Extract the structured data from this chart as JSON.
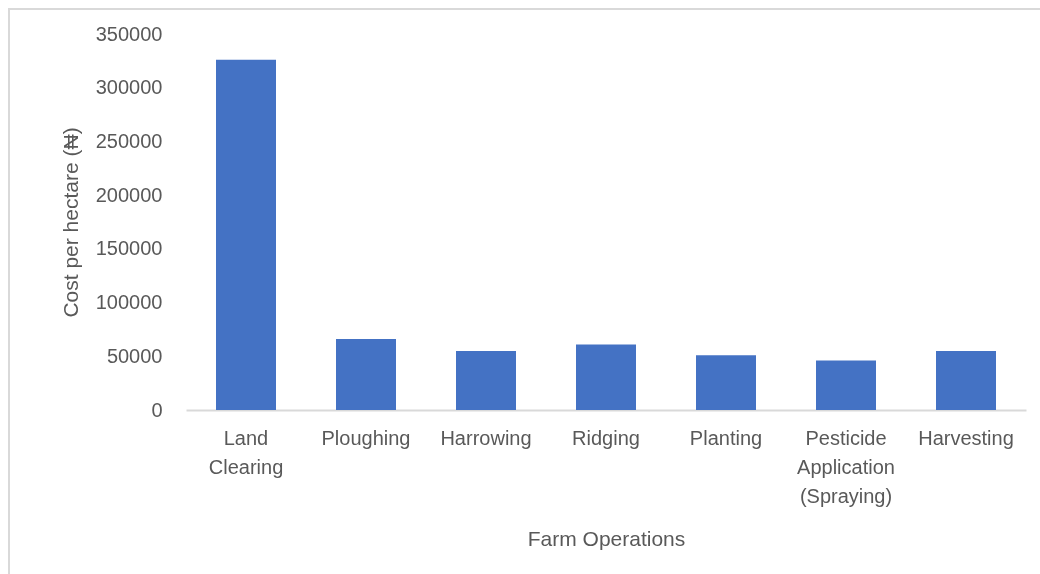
{
  "chart_data": {
    "type": "bar",
    "xlabel": "Farm Operations",
    "ylabel": "Cost per hectare (₦)",
    "categories": [
      "Land Clearing",
      "Ploughing",
      "Harrowing",
      "Ridging",
      "Planting",
      "Pesticide Application (Spraying)",
      "Harvesting"
    ],
    "values": [
      326000,
      66000,
      55000,
      61000,
      51000,
      46000,
      55000
    ],
    "color": "#4472c4",
    "ylim": [
      0,
      350000
    ],
    "yticks": [
      0,
      50000,
      100000,
      150000,
      200000,
      250000,
      300000,
      350000
    ],
    "grid": false
  }
}
